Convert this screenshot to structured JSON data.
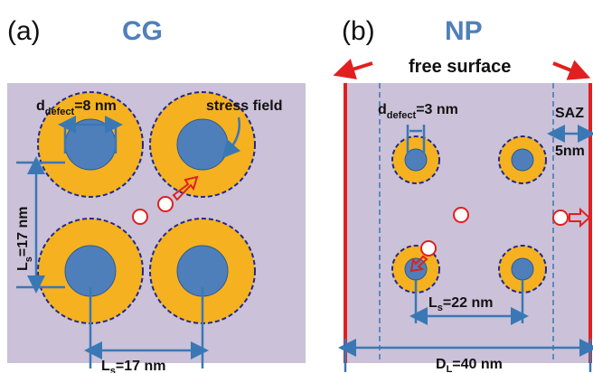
{
  "panel_a": {
    "label": "(a)",
    "title": "CG",
    "defect_size": {
      "symbol": "d",
      "sub": "defect",
      "text": "=8 nm"
    },
    "stress_field": "stress field",
    "spacing_vertical": {
      "symbol": "L",
      "sub": "s",
      "text": "=17 nm"
    },
    "spacing_horizontal": {
      "symbol": "L",
      "sub": "s",
      "text": "=17 nm"
    }
  },
  "panel_b": {
    "label": "(b)",
    "title": "NP",
    "free_surface": "free surface",
    "defect_size": {
      "symbol": "d",
      "sub": "defect",
      "text": "=3 nm"
    },
    "saz": "SAZ",
    "saz_width": "5nm",
    "spacing": {
      "symbol": "L",
      "sub": "s",
      "text": "=22 nm"
    },
    "length": {
      "symbol": "D",
      "sub": "L",
      "text": "=40 nm"
    }
  }
}
